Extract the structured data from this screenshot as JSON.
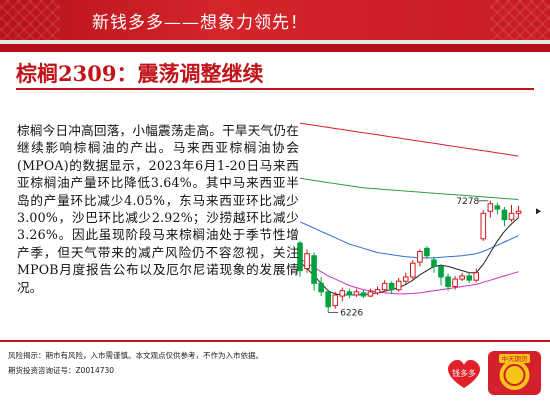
{
  "header": {
    "banner_text": "新钱多多——想象力领先！"
  },
  "article": {
    "title": "棕榈2309：震荡调整继续",
    "body": "棕榈今日冲高回落，小幅震荡走高。干旱天气仍在继续影响棕榈油的产出。马来西亚棕榈油协会(MPOA)的数据显示，2023年6月1-20日马来西亚棕榈油产量环比降低3.64%。其中马来西亚半岛的产量环比减少4.05%，东马来西亚环比减少3.00%，沙巴环比减少2.92%；沙捞越环比减少3.26%。因此虽现阶段马来棕榈油处于季节性增产季，但天气带来的减产风险仍不容忽视，关注MPOB月度报告公布以及厄尔尼诺现象的发展情况。"
  },
  "chart": {
    "high_label": "7278",
    "low_label": "6226",
    "colors": {
      "up": "#ffffff",
      "up_stroke": "#d01b1b",
      "down": "#00a040",
      "ma_red": "#d61f2a",
      "ma_green": "#2f9e3a",
      "ma_blue": "#2f6fd6",
      "ma_magenta": "#d62fc1",
      "ma_black": "#222222"
    }
  },
  "chart_data": {
    "type": "candlestick",
    "high_annotation": 7278,
    "low_annotation": 6226,
    "candles": [
      {
        "o": 6880,
        "c": 6620,
        "h": 6900,
        "l": 6560
      },
      {
        "o": 6640,
        "c": 6780,
        "h": 6820,
        "l": 6600
      },
      {
        "o": 6760,
        "c": 6500,
        "h": 6790,
        "l": 6430
      },
      {
        "o": 6500,
        "c": 6420,
        "h": 6560,
        "l": 6380
      },
      {
        "o": 6420,
        "c": 6280,
        "h": 6440,
        "l": 6226
      },
      {
        "o": 6290,
        "c": 6390,
        "h": 6420,
        "l": 6260
      },
      {
        "o": 6380,
        "c": 6430,
        "h": 6460,
        "l": 6330
      },
      {
        "o": 6420,
        "c": 6390,
        "h": 6450,
        "l": 6360
      },
      {
        "o": 6390,
        "c": 6420,
        "h": 6450,
        "l": 6370
      },
      {
        "o": 6410,
        "c": 6380,
        "h": 6440,
        "l": 6360
      },
      {
        "o": 6380,
        "c": 6420,
        "h": 6450,
        "l": 6370
      },
      {
        "o": 6410,
        "c": 6440,
        "h": 6470,
        "l": 6390
      },
      {
        "o": 6440,
        "c": 6500,
        "h": 6530,
        "l": 6420
      },
      {
        "o": 6500,
        "c": 6440,
        "h": 6520,
        "l": 6400
      },
      {
        "o": 6440,
        "c": 6520,
        "h": 6550,
        "l": 6420
      },
      {
        "o": 6520,
        "c": 6560,
        "h": 6600,
        "l": 6490
      },
      {
        "o": 6560,
        "c": 6690,
        "h": 6720,
        "l": 6540
      },
      {
        "o": 6700,
        "c": 6800,
        "h": 6820,
        "l": 6660
      },
      {
        "o": 6830,
        "c": 6760,
        "h": 6850,
        "l": 6730
      },
      {
        "o": 6720,
        "c": 6660,
        "h": 6750,
        "l": 6600
      },
      {
        "o": 6660,
        "c": 6560,
        "h": 6680,
        "l": 6480
      },
      {
        "o": 6560,
        "c": 6470,
        "h": 6590,
        "l": 6430
      },
      {
        "o": 6470,
        "c": 6540,
        "h": 6570,
        "l": 6440
      },
      {
        "o": 6540,
        "c": 6570,
        "h": 6600,
        "l": 6520
      },
      {
        "o": 6570,
        "c": 6530,
        "h": 6600,
        "l": 6500
      },
      {
        "o": 6530,
        "c": 6600,
        "h": 6640,
        "l": 6510
      },
      {
        "o": 6920,
        "c": 7160,
        "h": 7190,
        "l": 6900
      },
      {
        "o": 7180,
        "c": 7250,
        "h": 7278,
        "l": 7120
      },
      {
        "o": 7230,
        "c": 7200,
        "h": 7260,
        "l": 7150
      },
      {
        "o": 7190,
        "c": 7100,
        "h": 7220,
        "l": 7040
      },
      {
        "o": 7100,
        "c": 7160,
        "h": 7240,
        "l": 7080
      },
      {
        "o": 7160,
        "c": 7180,
        "h": 7230,
        "l": 7120
      }
    ],
    "ma_lines": [
      {
        "name": "MA-red",
        "values": [
          8010,
          8000,
          7990,
          7980,
          7970,
          7960,
          7950,
          7940,
          7930,
          7920,
          7910,
          7900,
          7890,
          7880,
          7870,
          7860,
          7850,
          7840,
          7830,
          7820,
          7810,
          7800,
          7790,
          7780,
          7770,
          7760,
          7750,
          7740,
          7730,
          7720,
          7710,
          7700
        ]
      },
      {
        "name": "MA-green",
        "values": [
          7490,
          7480,
          7470,
          7460,
          7450,
          7440,
          7430,
          7420,
          7410,
          7400,
          7395,
          7390,
          7385,
          7380,
          7375,
          7370,
          7365,
          7360,
          7355,
          7350,
          7345,
          7340,
          7335,
          7330,
          7325,
          7320,
          7315,
          7310,
          7305,
          7300,
          7295,
          7290
        ]
      },
      {
        "name": "MA-blue",
        "values": [
          7080,
          7050,
          7020,
          6990,
          6960,
          6930,
          6900,
          6870,
          6850,
          6830,
          6810,
          6790,
          6780,
          6770,
          6760,
          6750,
          6745,
          6740,
          6740,
          6740,
          6745,
          6750,
          6755,
          6760,
          6770,
          6780,
          6800,
          6830,
          6860,
          6890,
          6920,
          6950
        ]
      },
      {
        "name": "MA-magenta",
        "values": [
          6730,
          6690,
          6650,
          6610,
          6570,
          6540,
          6510,
          6480,
          6460,
          6440,
          6430,
          6420,
          6410,
          6405,
          6400,
          6400,
          6405,
          6410,
          6420,
          6430,
          6440,
          6450,
          6460,
          6470,
          6480,
          6490,
          6510,
          6530,
          6550,
          6570,
          6590,
          6610
        ]
      },
      {
        "name": "MA-black",
        "values": [
          6700,
          6640,
          6570,
          6500,
          6430,
          6400,
          6390,
          6390,
          6390,
          6395,
          6400,
          6410,
          6425,
          6440,
          6460,
          6490,
          6530,
          6580,
          6620,
          6660,
          6670,
          6660,
          6640,
          6620,
          6600,
          6600,
          6680,
          6790,
          6900,
          6990,
          7060,
          7120
        ]
      }
    ]
  },
  "footer": {
    "line1": "风险揭示：期市有风险，入市需谨慎。本文观点仅供参考，不作为入市依据。",
    "line2": "期货投资咨询证号：Z0014730"
  },
  "logos": {
    "left_text": "钱多多",
    "right_text": "中天期货"
  }
}
